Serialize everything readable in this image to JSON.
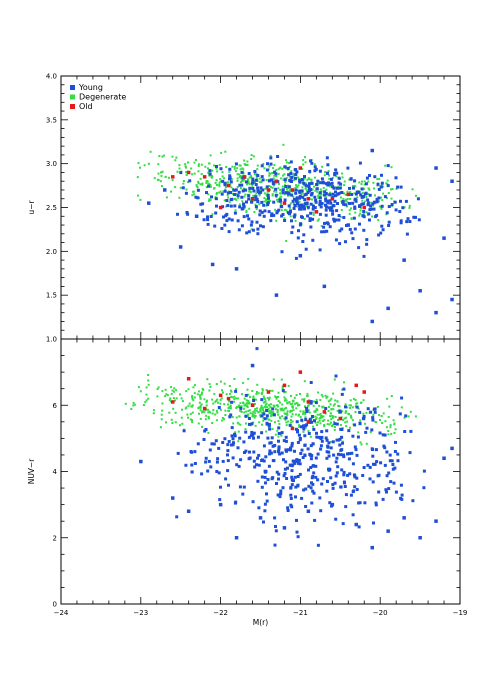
{
  "chart_data": [
    {
      "type": "scatter",
      "panel": "top",
      "title": "",
      "xlabel": "",
      "ylabel": "u−r",
      "xlim": [
        -24,
        -19
      ],
      "ylim": [
        1.0,
        4.0
      ],
      "x_ticks": [
        -24,
        -23,
        -22,
        -21,
        -20,
        -19
      ],
      "y_ticks": [
        1.0,
        1.5,
        2.0,
        2.5,
        3.0,
        3.5,
        4.0
      ],
      "y_tick_labels": [
        "1.0",
        "1.5",
        "2.0",
        "2.5",
        "3.0",
        "3.5",
        "4.0"
      ],
      "legend": {
        "placement": "top-left",
        "entries": [
          {
            "label": "Young",
            "color": "#1f4fd6"
          },
          {
            "label": "Degenerate",
            "color": "#33dd44"
          },
          {
            "label": "Old",
            "color": "#e31a1c"
          }
        ]
      },
      "series": [
        {
          "name": "Young",
          "color": "#1f4fd6",
          "x_range": [
            -23.1,
            -19.1
          ],
          "y_center": 2.6,
          "y_spread": 0.35,
          "points": [
            [
              -22.9,
              2.55
            ],
            [
              -22.7,
              2.7
            ],
            [
              -22.5,
              2.05
            ],
            [
              -22.3,
              2.4
            ],
            [
              -22.1,
              1.85
            ],
            [
              -21.8,
              1.8
            ],
            [
              -21.3,
              1.5
            ],
            [
              -21.0,
              1.95
            ],
            [
              -20.7,
              1.6
            ],
            [
              -20.4,
              2.3
            ],
            [
              -20.1,
              1.2
            ],
            [
              -20.1,
              3.15
            ],
            [
              -19.9,
              1.35
            ],
            [
              -19.7,
              1.9
            ],
            [
              -19.5,
              1.55
            ],
            [
              -19.3,
              1.3
            ],
            [
              -19.2,
              2.15
            ],
            [
              -19.1,
              1.45
            ],
            [
              -19.3,
              2.95
            ],
            [
              -19.1,
              2.8
            ]
          ]
        },
        {
          "name": "Degenerate",
          "color": "#33dd44",
          "x_range": [
            -23.7,
            -19.1
          ],
          "y_center": 2.75,
          "y_spread": 0.15
        },
        {
          "name": "Old",
          "color": "#e31a1c",
          "points": [
            [
              -22.6,
              2.85
            ],
            [
              -22.4,
              2.9
            ],
            [
              -22.2,
              2.85
            ],
            [
              -22.0,
              2.5
            ],
            [
              -21.9,
              2.75
            ],
            [
              -21.7,
              2.85
            ],
            [
              -21.6,
              2.6
            ],
            [
              -21.4,
              2.7
            ],
            [
              -21.3,
              2.8
            ],
            [
              -21.2,
              2.55
            ],
            [
              -21.1,
              2.7
            ],
            [
              -21.0,
              2.95
            ],
            [
              -20.9,
              2.6
            ],
            [
              -20.8,
              2.45
            ],
            [
              -20.6,
              2.6
            ],
            [
              -20.4,
              2.65
            ],
            [
              -20.2,
              2.5
            ]
          ]
        }
      ]
    },
    {
      "type": "scatter",
      "panel": "bottom",
      "title": "",
      "xlabel": "M(r)",
      "ylabel": "NUV−r",
      "xlim": [
        -24,
        -19
      ],
      "ylim": [
        0,
        8
      ],
      "x_ticks": [
        -24,
        -23,
        -22,
        -21,
        -20,
        -19
      ],
      "x_tick_labels": [
        "−24",
        "−23",
        "−22",
        "−21",
        "−20",
        "−19"
      ],
      "y_ticks": [
        0,
        2,
        4,
        6
      ],
      "y_tick_labels": [
        "0",
        "2",
        "4",
        "6"
      ],
      "series": [
        {
          "name": "Young",
          "color": "#1f4fd6",
          "x_range": [
            -23.1,
            -19.1
          ],
          "y_center": 4.5,
          "y_spread": 0.9,
          "points": [
            [
              -23.0,
              4.3
            ],
            [
              -22.6,
              3.2
            ],
            [
              -22.4,
              2.8
            ],
            [
              -22.0,
              3.0
            ],
            [
              -21.8,
              2.0
            ],
            [
              -21.5,
              2.6
            ],
            [
              -21.2,
              2.3
            ],
            [
              -20.9,
              2.8
            ],
            [
              -20.6,
              3.0
            ],
            [
              -20.3,
              2.4
            ],
            [
              -20.1,
              1.7
            ],
            [
              -19.9,
              2.2
            ],
            [
              -19.7,
              2.6
            ],
            [
              -19.5,
              2.0
            ],
            [
              -19.3,
              2.5
            ],
            [
              -19.2,
              4.4
            ],
            [
              -19.1,
              4.7
            ],
            [
              -21.6,
              7.2
            ]
          ]
        },
        {
          "name": "Degenerate",
          "color": "#33dd44",
          "x_range": [
            -23.8,
            -19.1
          ],
          "y_center": 5.9,
          "y_spread": 0.35
        },
        {
          "name": "Old",
          "color": "#e31a1c",
          "points": [
            [
              -22.6,
              6.1
            ],
            [
              -22.4,
              6.8
            ],
            [
              -22.2,
              5.9
            ],
            [
              -22.0,
              6.3
            ],
            [
              -21.9,
              6.2
            ],
            [
              -21.6,
              6.0
            ],
            [
              -21.4,
              6.4
            ],
            [
              -21.2,
              6.6
            ],
            [
              -21.1,
              5.3
            ],
            [
              -21.0,
              7.0
            ],
            [
              -20.9,
              6.1
            ],
            [
              -20.7,
              5.8
            ],
            [
              -20.5,
              5.6
            ],
            [
              -20.3,
              6.6
            ],
            [
              -20.2,
              6.4
            ],
            [
              -20.9,
              5.5
            ]
          ]
        }
      ]
    }
  ]
}
